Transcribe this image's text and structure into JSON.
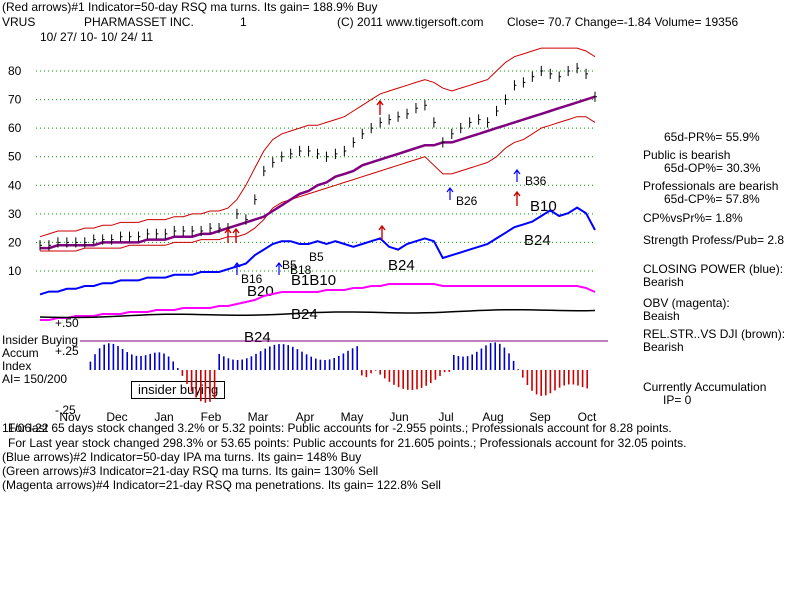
{
  "header": {
    "line1": "(Red arrows)#1 Indicator=50-day RSQ ma turns. Its gain= 188.9% Buy",
    "symbol": "VRUS",
    "company": "PHARMASSET INC.",
    "num": "1",
    "copyright": "(C) 2011 www.tigersoft.com",
    "quote": "Close=  70.7  Change=-1.84 Volume= 19356",
    "dates": "10/ 27/ 10-  10/ 24/ 11"
  },
  "right_panel": {
    "pr": "65d-PR%= 55.9%",
    "public1": "Public is bearish",
    "op": "65d-OP%= 30.3%",
    "prof1": "Professionals are bearish",
    "cp": "65d-CP%= 57.8%",
    "cpvspr": "CP%vsPr%=  1.8%",
    "strength": "Strength Profess/Pub= 2.8",
    "closing1": "CLOSING POWER (blue):",
    "closing2": "Bearish",
    "obv1": "OBV (magenta):",
    "obv2": "Beaish",
    "rel1": "REL.STR..VS DJI (brown):",
    "rel2": "Bearish",
    "acc1": "Currently Accumulation",
    "acc2": "IP=  0"
  },
  "left_labels": {
    "insider": "Insider Buying",
    "accum": "Accum",
    "index": "Index",
    "ai": "AI= 150/200",
    "p50": "+.50",
    "p25": "+.25",
    "m25": "-.25",
    "insider_box": "insider buying"
  },
  "footer": {
    "line1": "For last 65 days stock changed  3.2% or  5.32 points:  Public accounts for -2.955 points.;  Professionals account for  8.28 points.",
    "line1_overlay": "11/06-22",
    "line2": "For Last year stock changed  298.3% or  53.65 points:  Public accounts for  21.605 points.;  Professionals account for  32.05 points.",
    "line3": "(Blue arrows)#2 Indicator=50-day IPA ma turns. Its gain= 148% Buy",
    "line4": "(Green arrows)#3 Indicator=21-day RSQ ma turns. Its gain= 130% Sell",
    "line5": "(Magenta arrows)#4 Indicator=21-day RSQ ma penetrations. Its gain= 122.8% Sell"
  },
  "signal_labels": {
    "b26": "B26",
    "b36": "B36",
    "b10": "B10",
    "b24a": "B24",
    "b24b": "B24",
    "b24c": "B24",
    "b24d": "B24",
    "b20": "B20",
    "b1b10": "B1B10",
    "b5": "B5",
    "b5b": "B5",
    "b18": "B18",
    "b16": "B16"
  },
  "chart_data": {
    "type": "line",
    "price_ticks": [
      "80",
      "70",
      "60",
      "50",
      "40",
      "30",
      "20",
      "10"
    ],
    "months": [
      "Nov",
      "Dec",
      "Jan",
      "Feb",
      "Mar",
      "Apr",
      "May",
      "Jun",
      "Jul",
      "Aug",
      "Sep",
      "Oct"
    ],
    "colors": {
      "price": "#000000",
      "ma": "#800080",
      "band_red": "#cc0000",
      "closing_power": "#0000ff",
      "obv": "#ff00ff",
      "rel_str": "#663300",
      "accum_blue": "#0000cc",
      "accum_red": "#cc0000",
      "grid": "#009900"
    },
    "price_close": [
      19,
      19,
      20,
      20,
      20,
      20,
      21,
      21,
      21,
      22,
      22,
      22,
      23,
      23,
      23,
      24,
      24,
      24,
      24,
      25,
      25,
      25,
      30,
      28,
      35,
      45,
      48,
      50,
      51,
      52,
      52,
      51,
      50,
      51,
      52,
      55,
      58,
      60,
      62,
      63,
      64,
      65,
      67,
      68,
      62,
      55,
      58,
      60,
      62,
      63,
      62,
      66,
      70,
      75,
      76,
      78,
      80,
      79,
      78,
      80,
      81,
      79,
      71
    ],
    "ma50": [
      18,
      18,
      19,
      19,
      19,
      19,
      19,
      20,
      20,
      20,
      20,
      20,
      21,
      21,
      21,
      22,
      22,
      22,
      23,
      23,
      24,
      25,
      26,
      27,
      28,
      29,
      31,
      33,
      35,
      37,
      38,
      40,
      41,
      43,
      44,
      45,
      47,
      48,
      49,
      50,
      51,
      52,
      53,
      54,
      54,
      55,
      55,
      56,
      57,
      58,
      59,
      60,
      61,
      62,
      63,
      64,
      65,
      66,
      67,
      68,
      69,
      70,
      71
    ],
    "upper_band": [
      22,
      23,
      24,
      24,
      24,
      25,
      25,
      26,
      26,
      27,
      27,
      27,
      28,
      28,
      28,
      29,
      29,
      30,
      30,
      31,
      31,
      32,
      35,
      40,
      46,
      52,
      56,
      58,
      59,
      60,
      61,
      61,
      62,
      63,
      64,
      66,
      68,
      70,
      72,
      73,
      74,
      75,
      76,
      77,
      76,
      74,
      73,
      74,
      75,
      76,
      77,
      80,
      83,
      85,
      86,
      87,
      88,
      88,
      88,
      88,
      88,
      87,
      85
    ],
    "lower_band": [
      17,
      17,
      17,
      17,
      17,
      18,
      18,
      18,
      18,
      18,
      19,
      19,
      19,
      19,
      19,
      20,
      20,
      20,
      21,
      21,
      21,
      22,
      22,
      23,
      25,
      28,
      32,
      34,
      35,
      36,
      37,
      38,
      39,
      40,
      41,
      42,
      43,
      44,
      45,
      46,
      47,
      48,
      49,
      50,
      47,
      44,
      44,
      45,
      46,
      47,
      48,
      50,
      53,
      55,
      56,
      58,
      60,
      61,
      62,
      63,
      64,
      64,
      62
    ],
    "closing_power": [
      2,
      3,
      3,
      4,
      4,
      5,
      5,
      6,
      6,
      7,
      7,
      7,
      8,
      8,
      8,
      9,
      9,
      9,
      10,
      10,
      10,
      11,
      12,
      13,
      16,
      18,
      20,
      21,
      21,
      20,
      20,
      21,
      20,
      21,
      20,
      19,
      20,
      21,
      22,
      19,
      18,
      20,
      21,
      22,
      21,
      15,
      16,
      17,
      18,
      19,
      20,
      22,
      24,
      26,
      27,
      28,
      30,
      32,
      30,
      31,
      33,
      31,
      25
    ],
    "obv": [
      -2,
      -2,
      -1,
      -1,
      0,
      0,
      0,
      1,
      1,
      1,
      2,
      2,
      2,
      3,
      3,
      3,
      4,
      4,
      4,
      4,
      5,
      5,
      6,
      7,
      8,
      10,
      11,
      12,
      12,
      12,
      12,
      12,
      13,
      13,
      13,
      14,
      14,
      15,
      15,
      16,
      16,
      16,
      16,
      16,
      16,
      15,
      15,
      15,
      15,
      15,
      15,
      15,
      15,
      15,
      15,
      15,
      15,
      15,
      15,
      15,
      15,
      14,
      12
    ],
    "accum_ticks": [
      "+.50",
      "+.25",
      "-.25"
    ]
  }
}
